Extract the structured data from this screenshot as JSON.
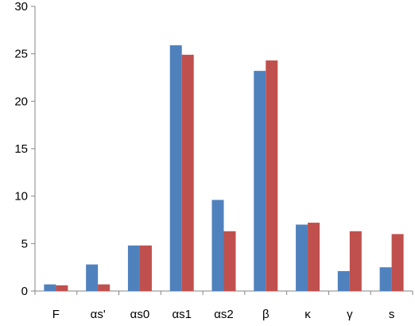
{
  "chart_data": {
    "type": "bar",
    "title": "",
    "xlabel": "",
    "ylabel": "",
    "categories": [
      "F",
      "αs'",
      "αs0",
      "αs1",
      "αs2",
      "β",
      "κ",
      "γ",
      "s"
    ],
    "series": [
      {
        "color": "#4f81bd",
        "values": [
          0.7,
          2.8,
          4.8,
          25.9,
          9.6,
          23.2,
          7.0,
          2.1,
          2.5
        ]
      },
      {
        "color": "#c0504d",
        "values": [
          0.6,
          0.7,
          4.8,
          24.9,
          6.3,
          24.3,
          7.2,
          6.3,
          6.0
        ]
      }
    ],
    "ylim": [
      0,
      30
    ],
    "yticks": [
      0,
      5,
      10,
      15,
      20,
      25,
      30
    ],
    "grid": false,
    "legend": "none"
  }
}
